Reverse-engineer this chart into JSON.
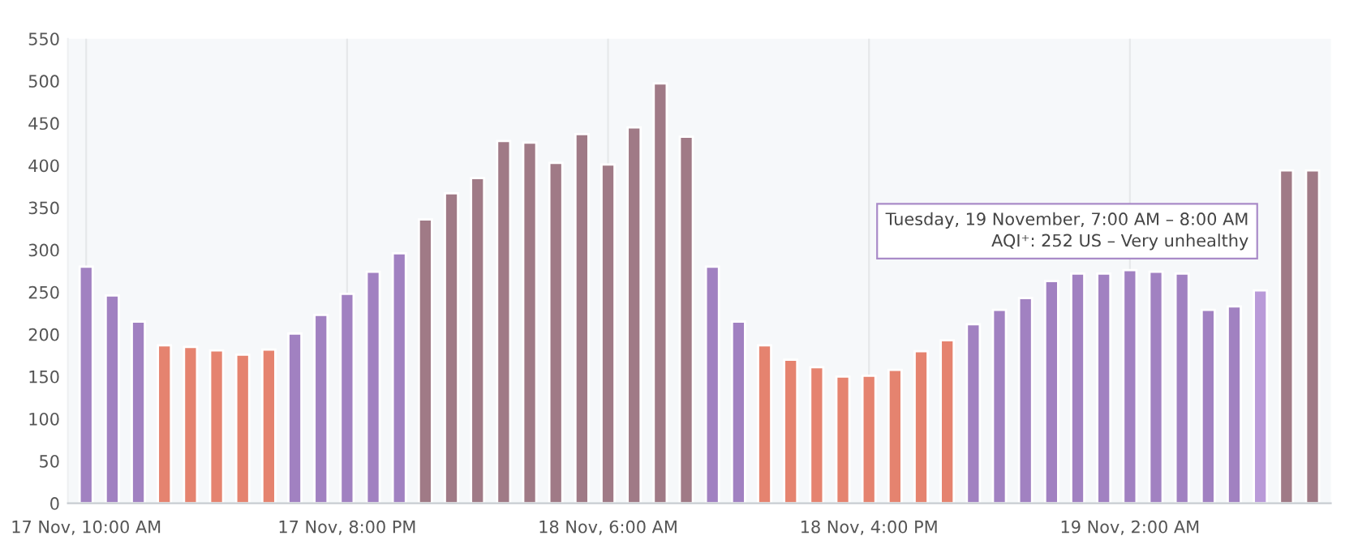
{
  "chart_data": {
    "type": "bar",
    "categories": [
      "17 Nov, 10:00 AM",
      null,
      null,
      null,
      null,
      null,
      null,
      null,
      null,
      null,
      "17 Nov, 8:00 PM",
      null,
      null,
      null,
      null,
      null,
      null,
      null,
      null,
      null,
      "18 Nov, 6:00 AM",
      null,
      null,
      null,
      null,
      null,
      null,
      null,
      null,
      null,
      "18 Nov, 4:00 PM",
      null,
      null,
      null,
      null,
      null,
      null,
      null,
      null,
      null,
      "19 Nov, 2:00 AM",
      null,
      null,
      null,
      null,
      null,
      null,
      null
    ],
    "values": [
      280,
      246,
      215,
      187,
      185,
      181,
      176,
      182,
      201,
      223,
      248,
      274,
      296,
      336,
      367,
      385,
      429,
      427,
      403,
      437,
      401,
      445,
      497,
      434,
      280,
      215,
      187,
      170,
      161,
      150,
      151,
      158,
      180,
      193,
      212,
      229,
      243,
      263,
      272,
      272,
      276,
      274,
      272,
      229,
      233,
      252,
      394,
      394
    ],
    "colors": [
      "#a181c1",
      "#a181c1",
      "#a181c1",
      "#e5836f",
      "#e5836f",
      "#e5836f",
      "#e5836f",
      "#e5836f",
      "#a181c1",
      "#a181c1",
      "#a181c1",
      "#a181c1",
      "#a181c1",
      "#a07a86",
      "#a07a86",
      "#a07a86",
      "#a07a86",
      "#a07a86",
      "#a07a86",
      "#a07a86",
      "#a07a86",
      "#a07a86",
      "#a07a86",
      "#a07a86",
      "#a181c1",
      "#a181c1",
      "#e5836f",
      "#e5836f",
      "#e5836f",
      "#e5836f",
      "#e5836f",
      "#e5836f",
      "#e5836f",
      "#e5836f",
      "#a181c1",
      "#a181c1",
      "#a181c1",
      "#a181c1",
      "#a181c1",
      "#a181c1",
      "#a181c1",
      "#a181c1",
      "#a181c1",
      "#a181c1",
      "#a181c1",
      "#b99ad8",
      "#a07a86",
      "#a07a86"
    ],
    "ylim": [
      0,
      550
    ],
    "yticks": [
      0,
      50,
      100,
      150,
      200,
      250,
      300,
      350,
      400,
      450,
      500,
      550
    ],
    "grid": "x",
    "annotations": [
      "Tuesday, 19 November, 7:00 AM – 8:00 AM\nAQI⁺: 252 US – Very unhealthy"
    ]
  }
}
